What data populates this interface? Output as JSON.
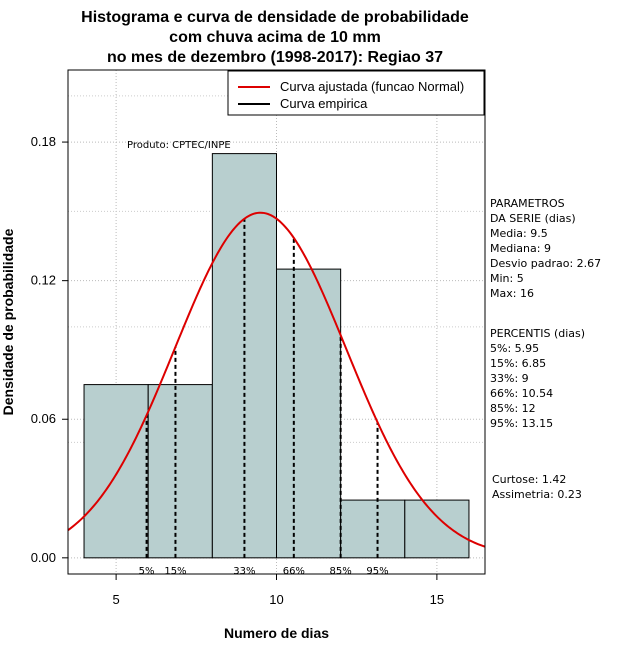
{
  "chart_data": {
    "type": "bar",
    "title_lines": [
      "Histograma e curva de densidade de probabilidade",
      "com chuva acima de 10 mm",
      "no mes de dezembro (1998-2017): Regiao 37"
    ],
    "xlabel": "Numero de dias",
    "ylabel": "Densidade de probabilidade",
    "xlim": [
      3.5,
      16.5
    ],
    "ylim": [
      -0.007,
      0.2112
    ],
    "x_ticks": [
      5,
      10,
      15
    ],
    "x_tick_labels": [
      "5",
      "10",
      "15"
    ],
    "y_ticks": [
      0.0,
      0.06,
      0.12,
      0.18
    ],
    "y_tick_labels": [
      "0.00",
      "0.06",
      "0.12",
      "0.18"
    ],
    "grid": true,
    "bins": [
      {
        "start": 4,
        "end": 6,
        "density": 0.075
      },
      {
        "start": 6,
        "end": 8,
        "density": 0.075
      },
      {
        "start": 8,
        "end": 10,
        "density": 0.175
      },
      {
        "start": 10,
        "end": 12,
        "density": 0.125
      },
      {
        "start": 12,
        "end": 14,
        "density": 0.025
      },
      {
        "start": 14,
        "end": 16,
        "density": 0.025
      }
    ],
    "bar_color": "#b8cfcf",
    "fitted_curve": {
      "name": "Curva ajustada (funcao Normal)",
      "mean": 9.5,
      "sd": 2.67,
      "color": "#dd0000"
    },
    "empirical_curve": {
      "name": "Curva empirica",
      "color": "#000000"
    },
    "percentile_lines": [
      {
        "label": "5%",
        "x": 5.95
      },
      {
        "label": "15%",
        "x": 6.85
      },
      {
        "label": "33%",
        "x": 9
      },
      {
        "label": "66%",
        "x": 10.54
      },
      {
        "label": "85%",
        "x": 12
      },
      {
        "label": "95%",
        "x": 13.15
      }
    ],
    "legend_position": "top-right",
    "product_label": "Produto: CPTEC/INPE"
  },
  "side_panel": {
    "params_lines": [
      "PARAMETROS",
      "DA SERIE (dias)",
      "  Media: 9.5",
      "  Mediana: 9",
      "  Desvio padrao: 2.67",
      "  Min: 5",
      "  Max: 16"
    ],
    "percentis_lines": [
      "PERCENTIS (dias)",
      "  5%: 5.95",
      "  15%: 6.85",
      "  33%: 9",
      "  66%: 10.54",
      "  85%: 12",
      "  95%: 13.15"
    ],
    "stats_lines": [
      "   Curtose: 1.42",
      "Assimetria: 0.23"
    ]
  }
}
